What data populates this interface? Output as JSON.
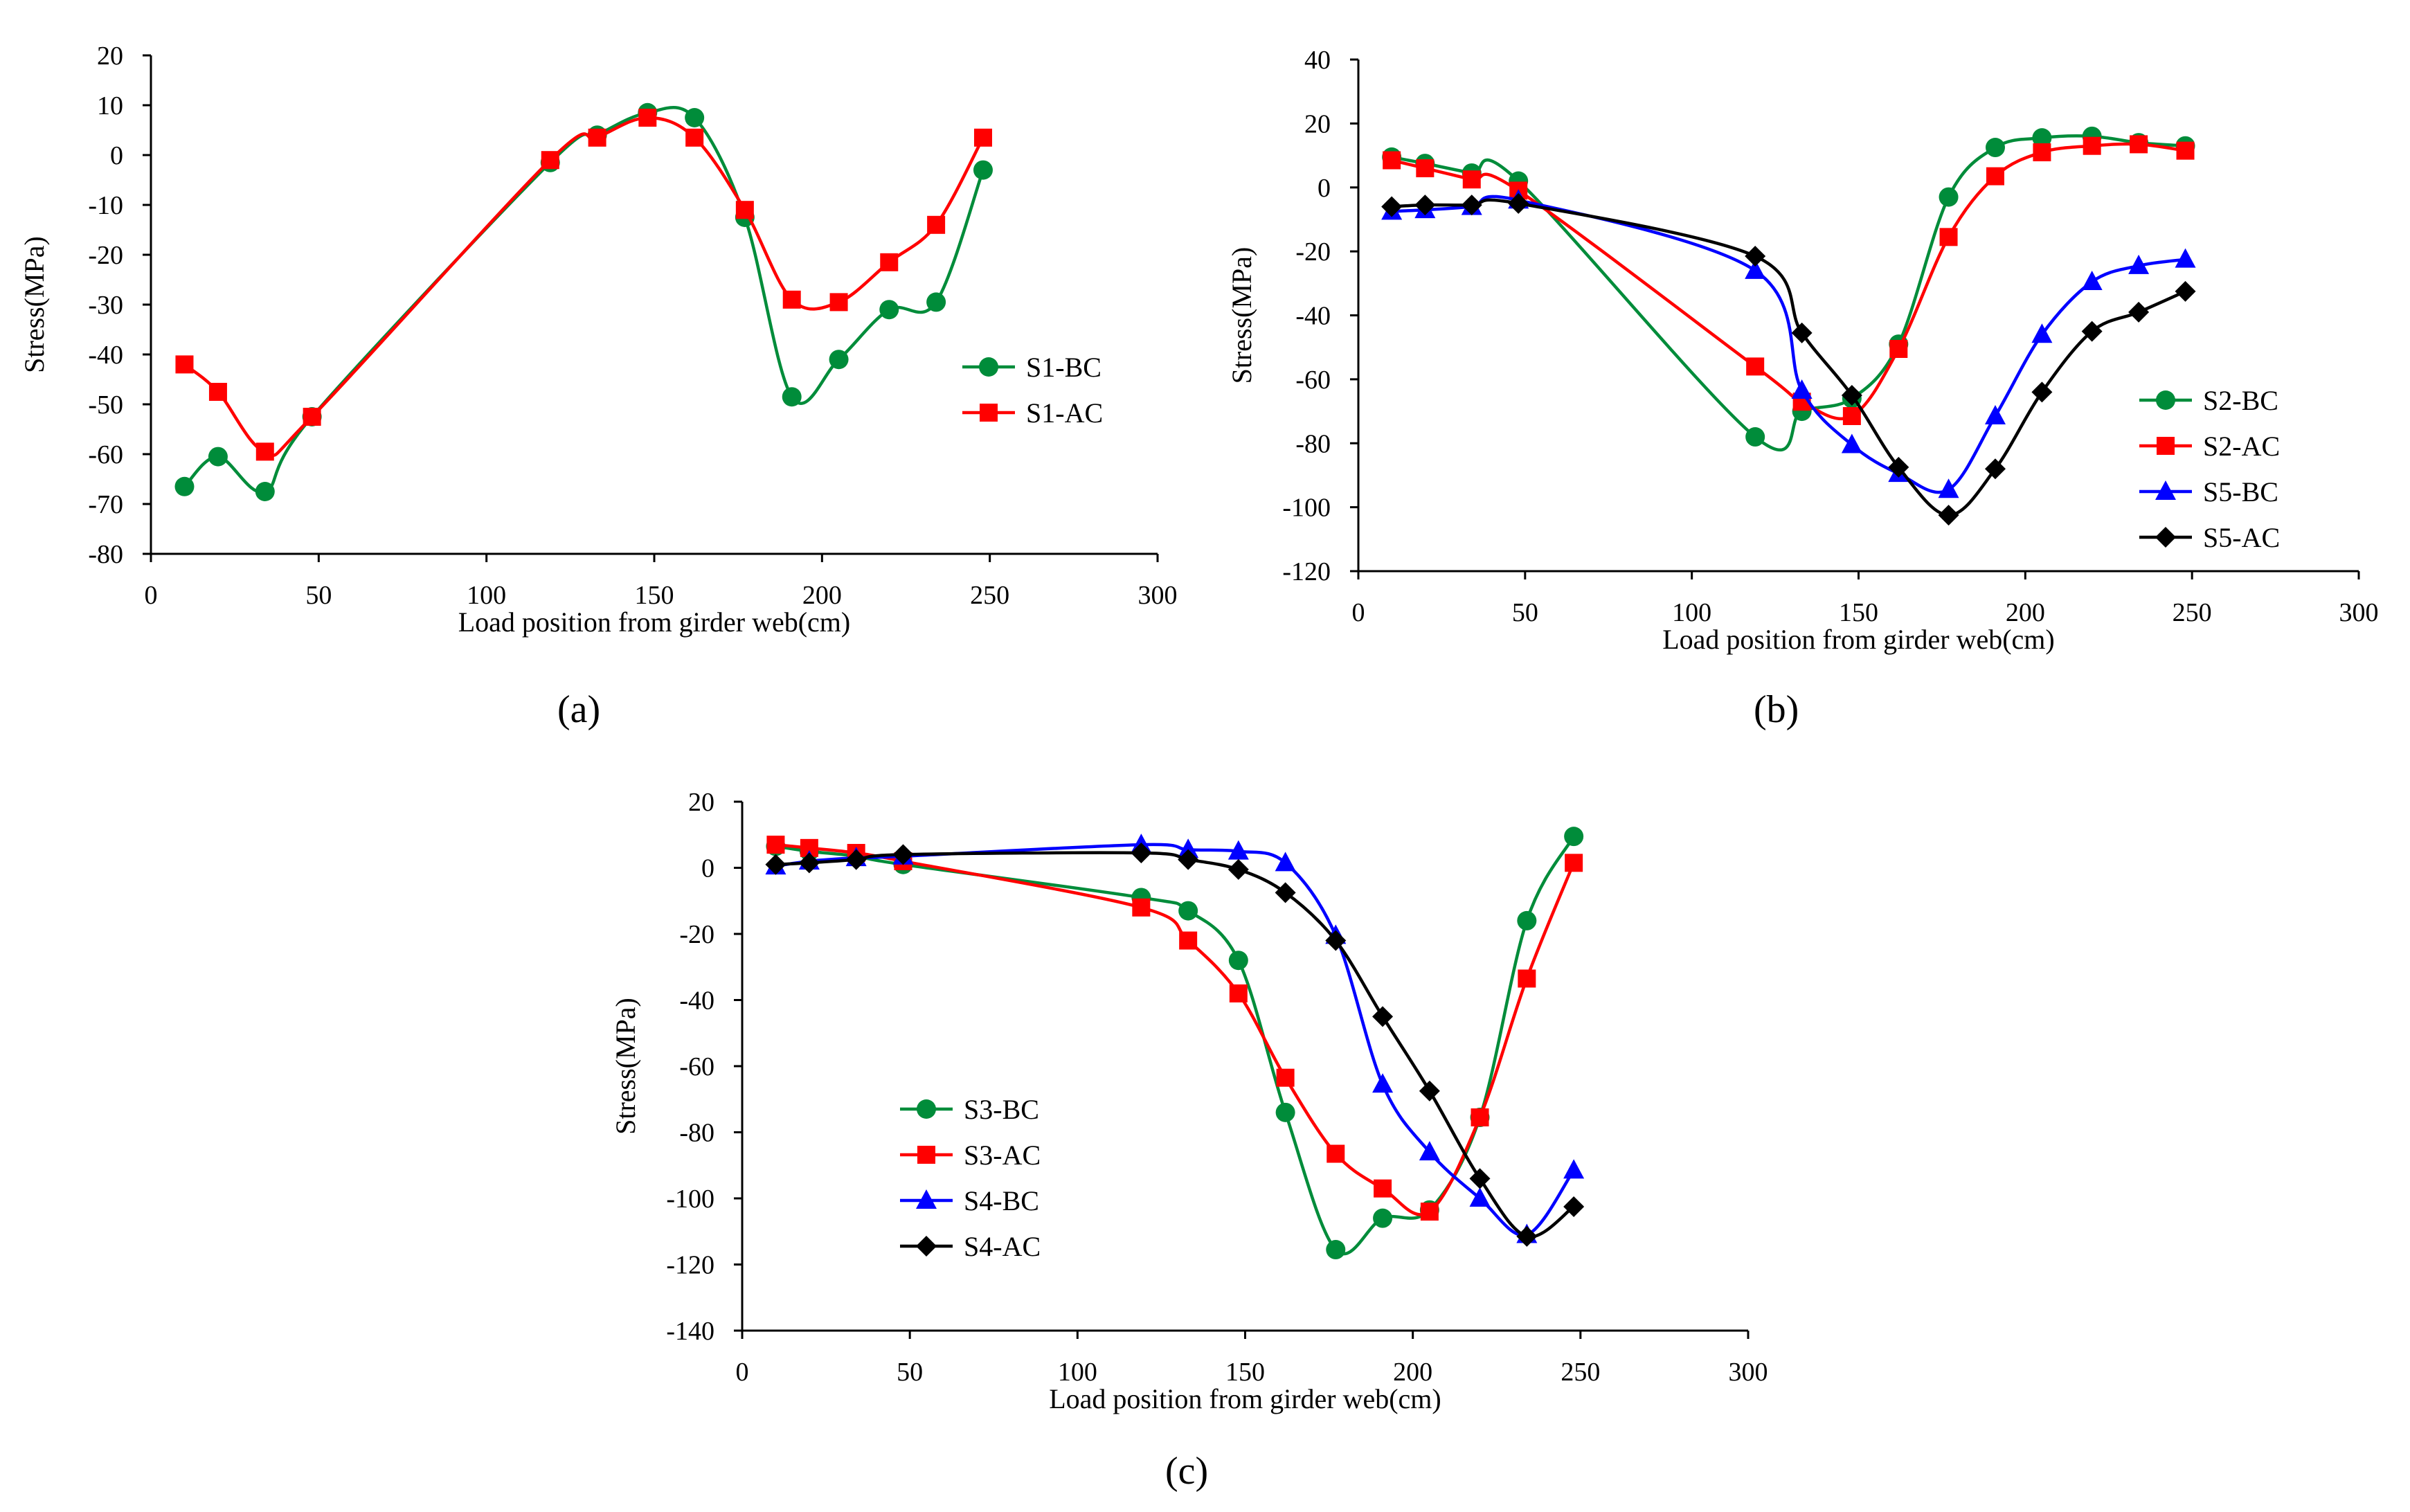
{
  "chart_data": [
    {
      "id": "a",
      "type": "line",
      "panel_label": "(a)",
      "title": "",
      "xlabel": "Load position from girder web(cm)",
      "ylabel": "Stress(MPa)",
      "xlim": [
        0,
        300
      ],
      "ylim": [
        -80,
        20
      ],
      "xticks": [
        0,
        50,
        100,
        150,
        200,
        250,
        300
      ],
      "yticks": [
        -80,
        -70,
        -60,
        -50,
        -40,
        -30,
        -20,
        -10,
        0,
        10,
        20
      ],
      "grid": false,
      "legend_position": "right",
      "series": [
        {
          "name": "S1-BC",
          "color": "#008C3A",
          "marker": "circle",
          "x": [
            10,
            20,
            34,
            48,
            119,
            133,
            148,
            162,
            177,
            191,
            205,
            220,
            234,
            248
          ],
          "y": [
            -66.5,
            -60.5,
            -67.5,
            -52.5,
            -1.5,
            4,
            8.5,
            7.5,
            -12.5,
            -48.5,
            -41,
            -31,
            -29.5,
            -3
          ]
        },
        {
          "name": "S1-AC",
          "color": "#FF0000",
          "marker": "square",
          "x": [
            10,
            20,
            34,
            48,
            119,
            133,
            148,
            162,
            177,
            191,
            205,
            220,
            234,
            248
          ],
          "y": [
            -42,
            -47.5,
            -59.5,
            -52.5,
            -1,
            3.5,
            7.5,
            3.5,
            -11,
            -29,
            -29.5,
            -21.5,
            -14,
            3.5
          ]
        }
      ]
    },
    {
      "id": "b",
      "type": "line",
      "panel_label": "(b)",
      "title": "",
      "xlabel": "Load position from girder web(cm)",
      "ylabel": "Stress(MPa)",
      "xlim": [
        0,
        300
      ],
      "ylim": [
        -120,
        40
      ],
      "xticks": [
        0,
        50,
        100,
        150,
        200,
        250,
        300
      ],
      "yticks": [
        -120,
        -100,
        -80,
        -60,
        -40,
        -20,
        0,
        20,
        40
      ],
      "grid": false,
      "legend_position": "right",
      "series": [
        {
          "name": "S2-BC",
          "color": "#008C3A",
          "marker": "circle",
          "x": [
            10,
            20,
            34,
            48,
            119,
            133,
            148,
            162,
            177,
            191,
            205,
            220,
            234,
            248
          ],
          "y": [
            9.5,
            7.5,
            4.5,
            2,
            -78,
            -70,
            -66,
            -49,
            -3,
            12.5,
            15.5,
            16,
            14,
            13
          ]
        },
        {
          "name": "S2-AC",
          "color": "#FF0000",
          "marker": "square",
          "x": [
            10,
            20,
            34,
            48,
            119,
            133,
            148,
            162,
            177,
            191,
            205,
            220,
            234,
            248
          ],
          "y": [
            8.5,
            6,
            2.5,
            -1,
            -56,
            -67,
            -71.5,
            -50.5,
            -15.5,
            3.5,
            11,
            13,
            13.5,
            11.5
          ]
        },
        {
          "name": "S5-BC",
          "color": "#0000FF",
          "marker": "triangle",
          "x": [
            10,
            20,
            34,
            48,
            119,
            133,
            148,
            162,
            177,
            191,
            205,
            220,
            234,
            248
          ],
          "y": [
            -7.5,
            -7,
            -6,
            -4,
            -26,
            -63.5,
            -80.5,
            -89.5,
            -94.5,
            -71.5,
            -46,
            -29.5,
            -24.5,
            -22.5
          ]
        },
        {
          "name": "S5-AC",
          "color": "#000000",
          "marker": "diamond",
          "x": [
            10,
            20,
            34,
            48,
            119,
            133,
            148,
            162,
            177,
            191,
            205,
            220,
            234,
            248
          ],
          "y": [
            -6,
            -5.5,
            -5.5,
            -5,
            -21.5,
            -45.5,
            -65,
            -87.5,
            -102.5,
            -88,
            -64,
            -45,
            -39,
            -32.5
          ]
        }
      ]
    },
    {
      "id": "c",
      "type": "line",
      "panel_label": "(c)",
      "title": "",
      "xlabel": "Load position from girder web(cm)",
      "ylabel": "Stress(MPa)",
      "xlim": [
        0,
        300
      ],
      "ylim": [
        -140,
        20
      ],
      "xticks": [
        0,
        50,
        100,
        150,
        200,
        250,
        300
      ],
      "yticks": [
        -140,
        -120,
        -100,
        -80,
        -60,
        -40,
        -20,
        0,
        20
      ],
      "grid": false,
      "legend_position": "left",
      "series": [
        {
          "name": "S3-BC",
          "color": "#008C3A",
          "marker": "circle",
          "x": [
            10,
            20,
            34,
            48,
            119,
            133,
            148,
            162,
            177,
            191,
            205,
            220,
            234,
            248
          ],
          "y": [
            6.5,
            5,
            3.5,
            1,
            -9,
            -13,
            -28,
            -74,
            -115.5,
            -106,
            -103.5,
            -75.5,
            -16,
            9.5
          ]
        },
        {
          "name": "S3-AC",
          "color": "#FF0000",
          "marker": "square",
          "x": [
            10,
            20,
            34,
            48,
            119,
            133,
            148,
            162,
            177,
            191,
            205,
            220,
            234,
            248
          ],
          "y": [
            7,
            6,
            4.5,
            2,
            -12,
            -22,
            -38,
            -63.5,
            -86.5,
            -97,
            -104,
            -75.5,
            -33.5,
            1.5
          ]
        },
        {
          "name": "S4-BC",
          "color": "#0000FF",
          "marker": "triangle",
          "x": [
            10,
            20,
            34,
            48,
            119,
            133,
            148,
            162,
            177,
            191,
            205,
            220,
            234,
            248
          ],
          "y": [
            0.5,
            2,
            3,
            3.5,
            7,
            5.5,
            5,
            1.5,
            -20.5,
            -65.5,
            -86,
            -100,
            -111,
            -91.5
          ]
        },
        {
          "name": "S4-AC",
          "color": "#000000",
          "marker": "diamond",
          "x": [
            10,
            20,
            34,
            48,
            119,
            133,
            148,
            162,
            177,
            191,
            205,
            220,
            234,
            248
          ],
          "y": [
            1,
            1.5,
            2.5,
            4,
            4.5,
            2.5,
            -0.5,
            -7.5,
            -22,
            -45,
            -67.5,
            -94,
            -111.5,
            -102.5
          ]
        }
      ]
    }
  ]
}
